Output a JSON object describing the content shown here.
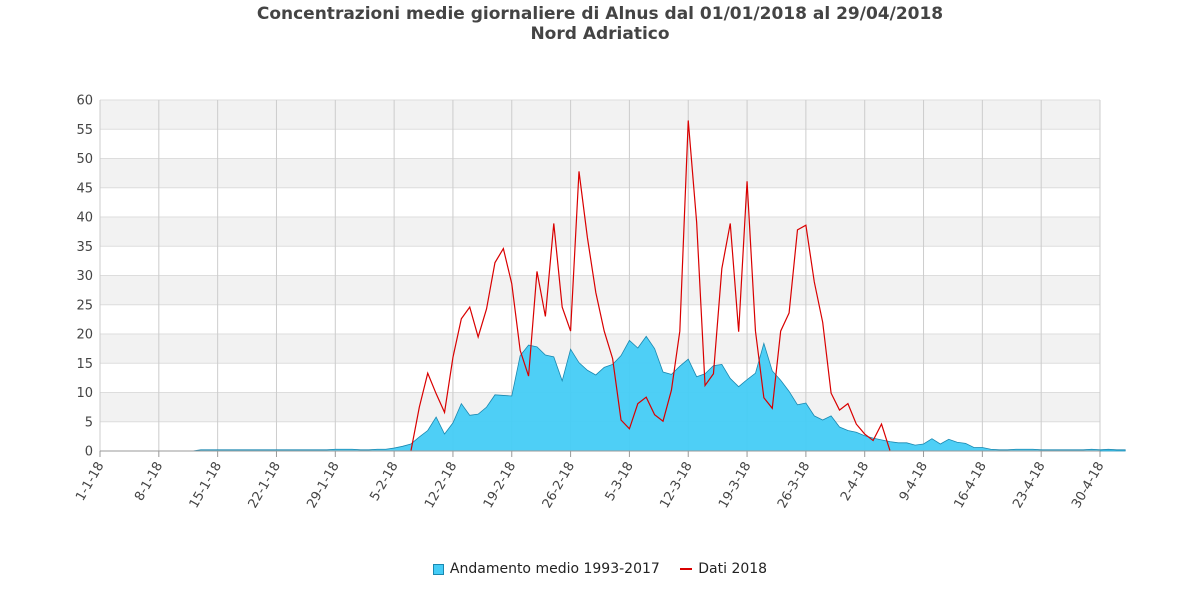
{
  "chart_data": {
    "type": "area",
    "title": "Concentrazioni medie giornaliere di Alnus dal 01/01/2018 al 29/04/2018",
    "subtitle": "Nord Adriatico",
    "xlabel": "",
    "ylabel": "",
    "ylim": [
      0,
      60
    ],
    "yticks": [
      "0",
      "5",
      "10",
      "15",
      "20",
      "25",
      "30",
      "35",
      "40",
      "45",
      "50",
      "55",
      "60"
    ],
    "xticks": [
      "1-1-18",
      "8-1-18",
      "15-1-18",
      "22-1-18",
      "29-1-18",
      "5-2-18",
      "12-2-18",
      "19-2-18",
      "26-2-18",
      "5-3-18",
      "12-3-18",
      "19-3-18",
      "26-3-18",
      "2-4-18",
      "9-4-18",
      "16-4-18",
      "23-4-18",
      "30-4-18"
    ],
    "x_start": "2018-01-01",
    "grid": true,
    "legend_placement": "bottom",
    "series": [
      {
        "name": "Andamento medio 1993-2017",
        "type": "area",
        "color": "#44ccf6",
        "stroke": "#1a88b0",
        "values": [
          0,
          0,
          0,
          0,
          0,
          0,
          0,
          0,
          0,
          0,
          0,
          0,
          0.2,
          0.2,
          0.2,
          0.2,
          0.2,
          0.2,
          0.2,
          0.2,
          0.2,
          0.2,
          0.2,
          0.2,
          0.2,
          0.2,
          0.2,
          0.2,
          0.3,
          0.3,
          0.3,
          0.2,
          0.2,
          0.3,
          0.3,
          0.5,
          0.8,
          1.2,
          2.4,
          3.5,
          5.8,
          2.9,
          4.8,
          8.1,
          6.1,
          6.3,
          7.5,
          9.6,
          9.5,
          9.4,
          16.3,
          18.1,
          17.8,
          16.4,
          16.1,
          12.0,
          17.4,
          15.1,
          13.8,
          13.0,
          14.3,
          14.8,
          16.3,
          18.9,
          17.6,
          19.6,
          17.5,
          13.5,
          13.1,
          14.5,
          15.7,
          12.7,
          13.2,
          14.6,
          14.8,
          12.4,
          11.0,
          12.2,
          13.3,
          18.4,
          13.7,
          12.1,
          10.2,
          7.9,
          8.2,
          6.0,
          5.3,
          6.0,
          4.1,
          3.5,
          3.2,
          2.6,
          2.2,
          1.9,
          1.6,
          1.4,
          1.4,
          1.0,
          1.2,
          2.1,
          1.2,
          2.0,
          1.5,
          1.3,
          0.6,
          0.6,
          0.3,
          0.2,
          0.2,
          0.3,
          0.3,
          0.3,
          0.2,
          0.2,
          0.2,
          0.2,
          0.2,
          0.2,
          0.3,
          0.2,
          0.3,
          0.2,
          0.2
        ]
      },
      {
        "name": "Dati 2018",
        "type": "line",
        "color": "#d90000",
        "values": [
          null,
          null,
          null,
          null,
          null,
          null,
          null,
          null,
          null,
          null,
          null,
          null,
          null,
          null,
          null,
          null,
          null,
          null,
          null,
          null,
          null,
          null,
          null,
          null,
          null,
          null,
          null,
          null,
          null,
          null,
          null,
          null,
          null,
          null,
          null,
          null,
          null,
          0,
          7.5,
          13.3,
          9.8,
          6.6,
          16.0,
          22.6,
          24.6,
          19.5,
          24.3,
          32.2,
          34.6,
          28.6,
          17.2,
          12.8,
          30.7,
          23.0,
          38.9,
          24.6,
          20.5,
          47.8,
          36.5,
          27.1,
          20.5,
          15.8,
          5.3,
          3.8,
          8.1,
          9.2,
          6.2,
          5.1,
          10.4,
          20.5,
          56.5,
          39.1,
          11.2,
          13.2,
          31.2,
          38.9,
          20.4,
          46.1,
          20.5,
          9.1,
          7.3,
          20.5,
          23.6,
          37.8,
          38.6,
          28.9,
          22.0,
          9.9,
          7.0,
          8.1,
          4.6,
          2.9,
          1.8,
          4.6,
          0.1
        ]
      }
    ]
  }
}
